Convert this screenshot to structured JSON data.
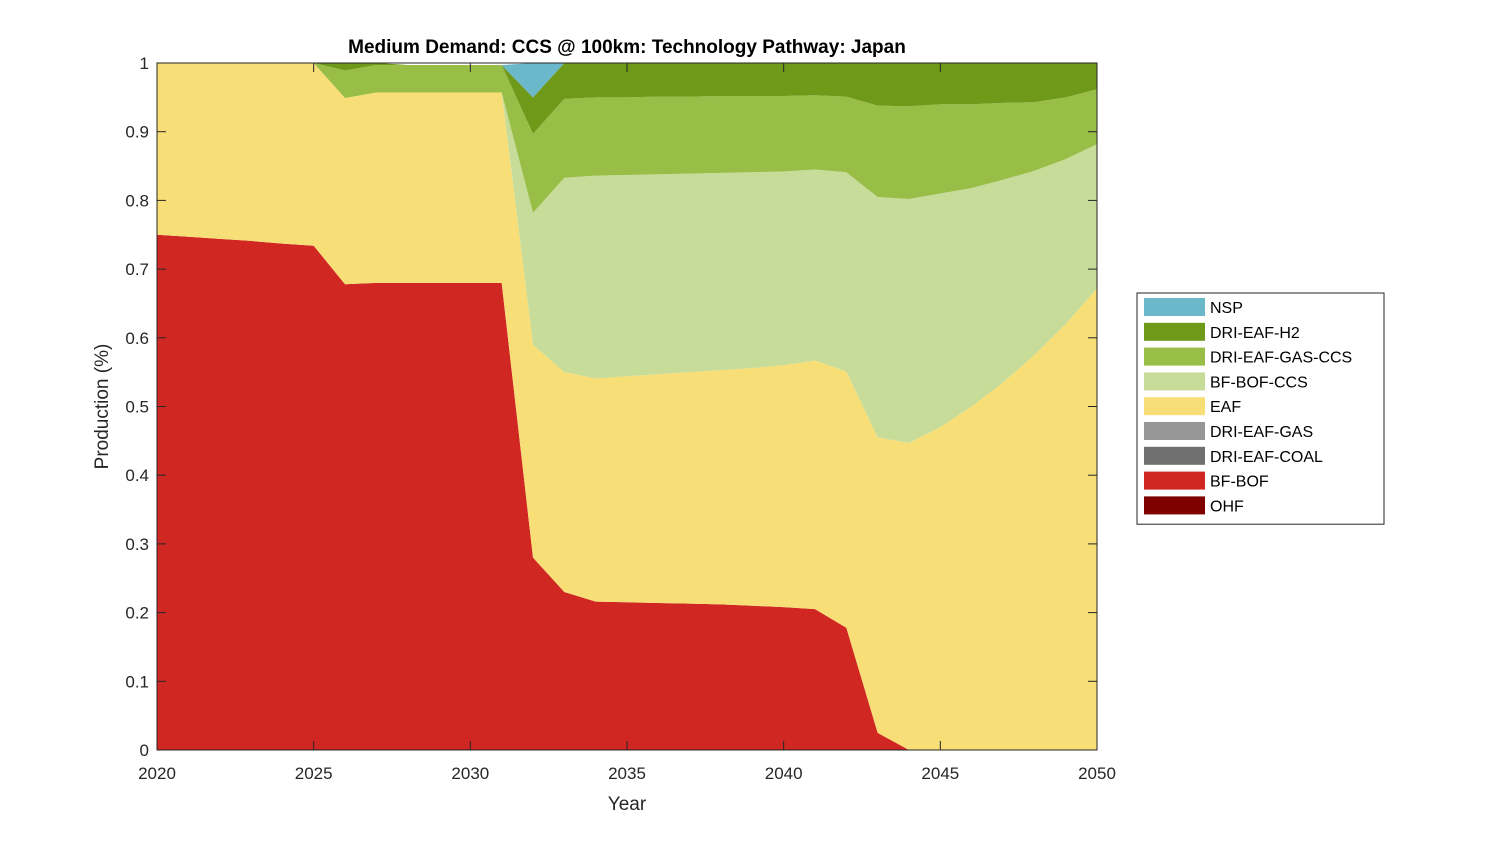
{
  "chart_data": {
    "type": "area",
    "title": "Medium Demand: CCS @ 100km: Technology Pathway: Japan",
    "xlabel": "Year",
    "ylabel": "Production (%)",
    "xlim": [
      2020,
      2050
    ],
    "ylim": [
      0,
      1
    ],
    "x_ticks": [
      "2020",
      "2025",
      "2030",
      "2035",
      "2040",
      "2045",
      "2050"
    ],
    "y_ticks": [
      "0",
      "0.1",
      "0.2",
      "0.3",
      "0.4",
      "0.5",
      "0.6",
      "0.7",
      "0.8",
      "0.9",
      "1"
    ],
    "x": [
      2020,
      2021,
      2022,
      2023,
      2024,
      2025,
      2026,
      2027,
      2028,
      2029,
      2030,
      2031,
      2032,
      2033,
      2034,
      2035,
      2036,
      2037,
      2038,
      2039,
      2040,
      2041,
      2042,
      2043,
      2044,
      2045,
      2046,
      2047,
      2048,
      2049,
      2050
    ],
    "stack_order": [
      "OHF",
      "BF-BOF",
      "DRI-EAF-COAL",
      "DRI-EAF-GAS",
      "EAF",
      "BF-BOF-CCS",
      "DRI-EAF-GAS-CCS",
      "DRI-EAF-H2",
      "NSP"
    ],
    "series": [
      {
        "name": "OHF",
        "color": "#800000",
        "values": [
          0,
          0,
          0,
          0,
          0,
          0,
          0,
          0,
          0,
          0,
          0,
          0,
          0,
          0,
          0,
          0,
          0,
          0,
          0,
          0,
          0,
          0,
          0,
          0,
          0,
          0,
          0,
          0,
          0,
          0,
          0
        ]
      },
      {
        "name": "BF-BOF",
        "color": "#d02723",
        "values": [
          0.75,
          0.747,
          0.744,
          0.741,
          0.737,
          0.734,
          0.678,
          0.68,
          0.68,
          0.68,
          0.68,
          0.68,
          0.28,
          0.23,
          0.216,
          0.215,
          0.214,
          0.213,
          0.212,
          0.21,
          0.208,
          0.205,
          0.178,
          0.025,
          0,
          0,
          0,
          0,
          0,
          0,
          0
        ]
      },
      {
        "name": "DRI-EAF-COAL",
        "color": "#707070",
        "values": [
          0,
          0,
          0,
          0,
          0,
          0,
          0,
          0,
          0,
          0,
          0,
          0,
          0,
          0,
          0,
          0,
          0,
          0,
          0,
          0,
          0,
          0,
          0,
          0,
          0,
          0,
          0,
          0,
          0,
          0,
          0
        ]
      },
      {
        "name": "DRI-EAF-GAS",
        "color": "#969696",
        "values": [
          0,
          0,
          0,
          0,
          0,
          0,
          0,
          0,
          0,
          0,
          0,
          0,
          0,
          0,
          0,
          0,
          0,
          0,
          0,
          0,
          0,
          0,
          0,
          0,
          0,
          0,
          0,
          0,
          0,
          0,
          0
        ]
      },
      {
        "name": "EAF",
        "color": "#f7de77",
        "values": [
          0.25,
          0.253,
          0.256,
          0.259,
          0.263,
          0.266,
          0.271,
          0.277,
          0.277,
          0.277,
          0.277,
          0.277,
          0.31,
          0.32,
          0.325,
          0.329,
          0.333,
          0.337,
          0.341,
          0.346,
          0.352,
          0.362,
          0.373,
          0.43,
          0.447,
          0.47,
          0.5,
          0.535,
          0.575,
          0.62,
          0.672
        ]
      },
      {
        "name": "BF-BOF-CCS",
        "color": "#c8dc99",
        "values": [
          0,
          0,
          0,
          0,
          0,
          0,
          0,
          0,
          0,
          0,
          0,
          0,
          0.192,
          0.283,
          0.295,
          0.293,
          0.291,
          0.289,
          0.287,
          0.285,
          0.282,
          0.278,
          0.29,
          0.35,
          0.355,
          0.34,
          0.318,
          0.295,
          0.268,
          0.24,
          0.21
        ]
      },
      {
        "name": "DRI-EAF-GAS-CCS",
        "color": "#98be48",
        "values": [
          0,
          0,
          0,
          0,
          0,
          0,
          0.04,
          0.04,
          0.04,
          0.04,
          0.04,
          0.04,
          0.115,
          0.115,
          0.114,
          0.113,
          0.113,
          0.112,
          0.112,
          0.111,
          0.11,
          0.108,
          0.11,
          0.133,
          0.135,
          0.13,
          0.122,
          0.112,
          0.1,
          0.09,
          0.08
        ]
      },
      {
        "name": "DRI-EAF-H2",
        "color": "#6e9919",
        "values": [
          0,
          0,
          0,
          0,
          0,
          0,
          0.011,
          0.003,
          0,
          0,
          0,
          0,
          0.053,
          0.052,
          0.05,
          0.05,
          0.049,
          0.049,
          0.048,
          0.048,
          0.048,
          0.047,
          0.049,
          0.062,
          0.063,
          0.06,
          0.06,
          0.058,
          0.057,
          0.05,
          0.038
        ]
      },
      {
        "name": "NSP",
        "color": "#6bb8cb",
        "values": [
          0,
          0,
          0,
          0,
          0,
          0,
          0,
          0,
          0,
          0,
          0,
          0,
          0.05,
          0,
          0,
          0,
          0,
          0,
          0,
          0,
          0,
          0,
          0,
          0,
          0,
          0,
          0,
          0,
          0,
          0,
          0
        ]
      }
    ],
    "legend": {
      "placement": "outside-right",
      "entries": [
        "NSP",
        "DRI-EAF-H2",
        "DRI-EAF-GAS-CCS",
        "BF-BOF-CCS",
        "EAF",
        "DRI-EAF-GAS",
        "DRI-EAF-COAL",
        "BF-BOF",
        "OHF"
      ]
    },
    "grid": false
  }
}
